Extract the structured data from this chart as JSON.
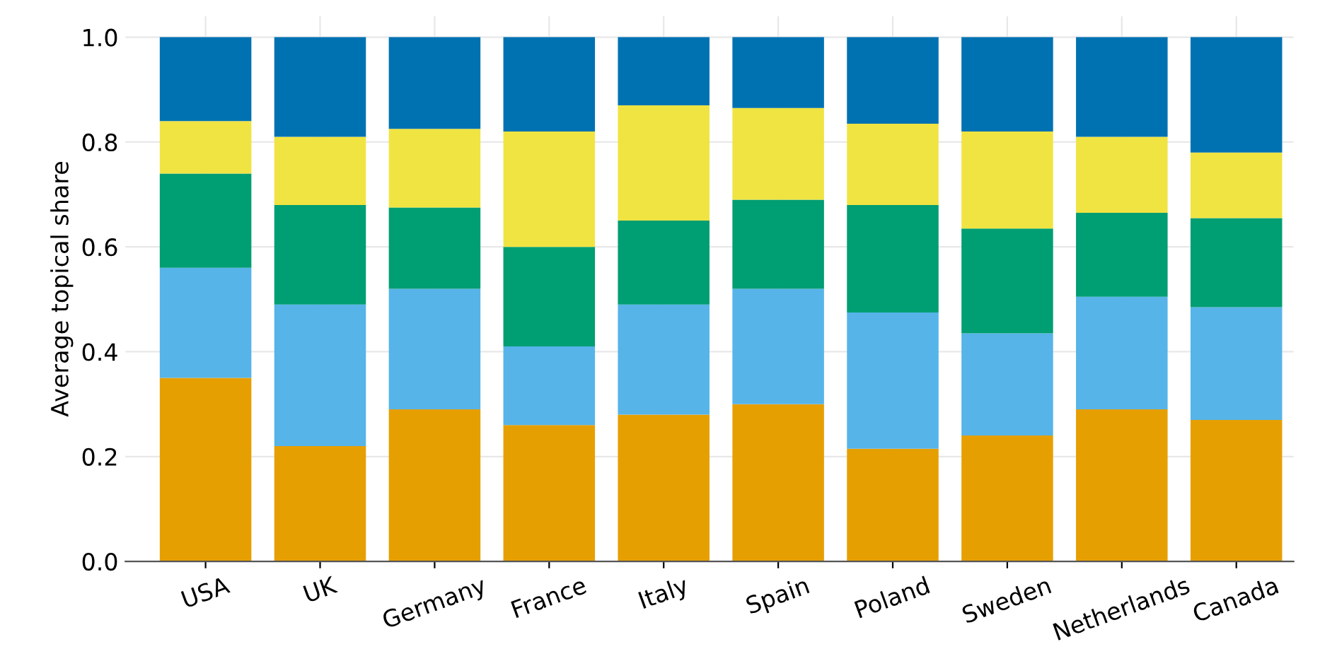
{
  "chart_data": {
    "type": "bar",
    "stacked": true,
    "ylabel": "Average topical share",
    "categories": [
      "USA",
      "UK",
      "Germany",
      "France",
      "Italy",
      "Spain",
      "Poland",
      "Sweden",
      "Netherlands",
      "Canada"
    ],
    "series": [
      {
        "color": "#e69f00",
        "values": [
          0.35,
          0.22,
          0.29,
          0.26,
          0.28,
          0.3,
          0.215,
          0.24,
          0.29,
          0.27
        ]
      },
      {
        "color": "#56b4e9",
        "values": [
          0.21,
          0.27,
          0.23,
          0.15,
          0.21,
          0.22,
          0.26,
          0.195,
          0.215,
          0.215
        ]
      },
      {
        "color": "#009e73",
        "values": [
          0.18,
          0.19,
          0.155,
          0.19,
          0.16,
          0.17,
          0.205,
          0.2,
          0.16,
          0.17
        ]
      },
      {
        "color": "#f0e442",
        "values": [
          0.1,
          0.13,
          0.15,
          0.22,
          0.22,
          0.175,
          0.155,
          0.185,
          0.145,
          0.125
        ]
      },
      {
        "color": "#0072b2",
        "values": [
          0.16,
          0.19,
          0.175,
          0.18,
          0.13,
          0.135,
          0.165,
          0.18,
          0.19,
          0.22
        ]
      }
    ],
    "ylim": [
      0,
      1.04
    ],
    "yticks": [
      {
        "value": 0,
        "label": "0.0"
      },
      {
        "value": 0.2,
        "label": "0.2"
      },
      {
        "value": 0.4,
        "label": "0.4"
      },
      {
        "value": 0.6,
        "label": "0.6"
      },
      {
        "value": 0.8,
        "label": "0.8"
      },
      {
        "value": 1,
        "label": "1.0"
      }
    ],
    "grid": true
  }
}
